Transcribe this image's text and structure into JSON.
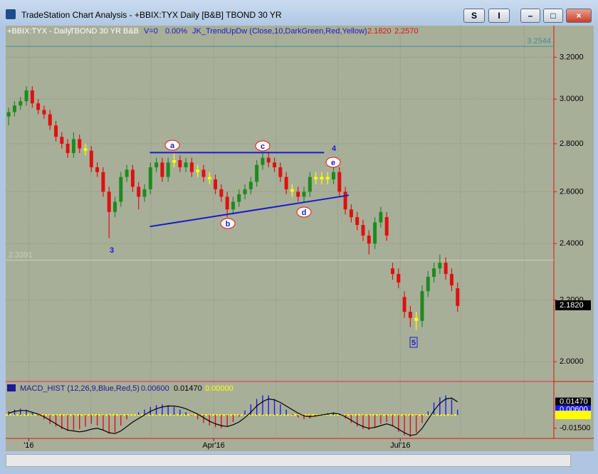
{
  "window": {
    "title": "TradeStation Chart Analysis - +BBIX:TYX Daily [B&B] TBOND 30 YR",
    "buttons": [
      "S",
      "I"
    ]
  },
  "chart_data": [
    {
      "type": "candlestick",
      "header": [
        "+BBIX:TYX - Daily",
        "TBOND 30 YR",
        "B&B",
        "V=0",
        "0.00%",
        "JK_TrendUpDw (Close,10,DarkGreen,Red,Yellow)",
        "2.1820",
        "2.2570"
      ],
      "log_scale": true,
      "grid": true,
      "ylim": [
        1.942,
        3.36
      ],
      "yticks": [
        {
          "value": 2.0,
          "label": "2.0000"
        },
        {
          "value": 2.2,
          "label": "2.2000"
        },
        {
          "value": 2.4,
          "label": "2.4000"
        },
        {
          "value": 2.6,
          "label": "2.6000"
        },
        {
          "value": 2.8,
          "label": "2.8000"
        },
        {
          "value": 3.0,
          "label": "3.0000"
        },
        {
          "value": 3.2,
          "label": "3.2000"
        }
      ],
      "xlim": [
        -0.5,
        92.3
      ],
      "xticks": [
        {
          "value": 3.4,
          "label": "'16"
        },
        {
          "value": 34.7,
          "label": "Apr'16"
        },
        {
          "value": 66.3,
          "label": "Jul'16"
        }
      ],
      "xgrid": [
        3.4,
        13.9,
        24.1,
        34.7,
        45.3,
        55.7,
        66.3,
        76.5,
        87.3
      ],
      "ref_lines": [
        {
          "value": 3.2544,
          "label": "3.2544",
          "color": "#3a8fa0"
        },
        {
          "value": 2.3391,
          "label": "2.3391",
          "color": "#c9cfbd"
        }
      ],
      "last_price": {
        "value": 2.182,
        "label": "2.1820"
      },
      "up_color": "#1f8a1f",
      "down_color": "#e01010",
      "flat_color": "#ffff00",
      "annotations": [
        "a",
        "b",
        "c",
        "d",
        "e",
        "3",
        "4",
        "5"
      ],
      "ohlc": [
        [
          2.92,
          2.96,
          2.88,
          2.94
        ],
        [
          2.94,
          2.99,
          2.92,
          2.97
        ],
        [
          2.97,
          3.01,
          2.95,
          2.99
        ],
        [
          2.99,
          3.06,
          2.97,
          3.04
        ],
        [
          3.04,
          3.06,
          2.96,
          2.98
        ],
        [
          2.98,
          3.0,
          2.93,
          2.95
        ],
        [
          2.95,
          2.97,
          2.91,
          2.93
        ],
        [
          2.93,
          2.95,
          2.86,
          2.88
        ],
        [
          2.88,
          2.9,
          2.81,
          2.83
        ],
        [
          2.83,
          2.85,
          2.78,
          2.8
        ],
        [
          2.8,
          2.82,
          2.74,
          2.76
        ],
        [
          2.76,
          2.85,
          2.74,
          2.82
        ],
        [
          2.82,
          2.84,
          2.76,
          2.78
        ],
        [
          2.78,
          2.8,
          2.75,
          2.77
        ],
        [
          2.77,
          2.79,
          2.68,
          2.7
        ],
        [
          2.7,
          2.72,
          2.66,
          2.68
        ],
        [
          2.68,
          2.7,
          2.58,
          2.6
        ],
        [
          2.6,
          2.62,
          2.42,
          2.52
        ],
        [
          2.52,
          2.58,
          2.5,
          2.56
        ],
        [
          2.56,
          2.68,
          2.54,
          2.66
        ],
        [
          2.66,
          2.71,
          2.64,
          2.69
        ],
        [
          2.69,
          2.71,
          2.6,
          2.62
        ],
        [
          2.62,
          2.64,
          2.53,
          2.58
        ],
        [
          2.58,
          2.63,
          2.56,
          2.61
        ],
        [
          2.61,
          2.72,
          2.59,
          2.7
        ],
        [
          2.7,
          2.74,
          2.68,
          2.72
        ],
        [
          2.72,
          2.74,
          2.64,
          2.66
        ],
        [
          2.66,
          2.74,
          2.64,
          2.72
        ],
        [
          2.72,
          2.76,
          2.7,
          2.73
        ],
        [
          2.73,
          2.75,
          2.68,
          2.7
        ],
        [
          2.7,
          2.74,
          2.68,
          2.72
        ],
        [
          2.72,
          2.74,
          2.66,
          2.68
        ],
        [
          2.68,
          2.71,
          2.66,
          2.69
        ],
        [
          2.69,
          2.71,
          2.64,
          2.66
        ],
        [
          2.66,
          2.68,
          2.63,
          2.65
        ],
        [
          2.65,
          2.67,
          2.59,
          2.61
        ],
        [
          2.61,
          2.63,
          2.56,
          2.58
        ],
        [
          2.58,
          2.6,
          2.5,
          2.53
        ],
        [
          2.53,
          2.58,
          2.51,
          2.56
        ],
        [
          2.56,
          2.61,
          2.54,
          2.59
        ],
        [
          2.59,
          2.63,
          2.57,
          2.61
        ],
        [
          2.61,
          2.66,
          2.59,
          2.64
        ],
        [
          2.64,
          2.73,
          2.62,
          2.71
        ],
        [
          2.71,
          2.76,
          2.69,
          2.74
        ],
        [
          2.74,
          2.76,
          2.7,
          2.72
        ],
        [
          2.72,
          2.74,
          2.68,
          2.7
        ],
        [
          2.7,
          2.72,
          2.64,
          2.66
        ],
        [
          2.66,
          2.68,
          2.59,
          2.61
        ],
        [
          2.61,
          2.63,
          2.58,
          2.6
        ],
        [
          2.6,
          2.62,
          2.56,
          2.58
        ],
        [
          2.58,
          2.62,
          2.56,
          2.6
        ],
        [
          2.6,
          2.68,
          2.58,
          2.66
        ],
        [
          2.66,
          2.68,
          2.63,
          2.65
        ],
        [
          2.65,
          2.68,
          2.63,
          2.66
        ],
        [
          2.66,
          2.68,
          2.63,
          2.65
        ],
        [
          2.65,
          2.71,
          2.63,
          2.68
        ],
        [
          2.68,
          2.7,
          2.58,
          2.6
        ],
        [
          2.6,
          2.62,
          2.51,
          2.53
        ],
        [
          2.53,
          2.55,
          2.48,
          2.5
        ],
        [
          2.5,
          2.52,
          2.45,
          2.47
        ],
        [
          2.47,
          2.49,
          2.41,
          2.43
        ],
        [
          2.43,
          2.45,
          2.36,
          2.4
        ],
        [
          2.4,
          2.5,
          2.38,
          2.48
        ],
        [
          2.48,
          2.54,
          2.46,
          2.52
        ],
        [
          2.5,
          2.52,
          2.41,
          2.43
        ],
        [
          2.31,
          2.33,
          2.27,
          2.29
        ],
        [
          2.29,
          2.31,
          2.24,
          2.26
        ],
        [
          2.21,
          2.23,
          2.14,
          2.16
        ],
        [
          2.16,
          2.18,
          2.11,
          2.14
        ],
        [
          2.14,
          2.16,
          2.1,
          2.13
        ],
        [
          2.13,
          2.25,
          2.11,
          2.23
        ],
        [
          2.23,
          2.3,
          2.21,
          2.28
        ],
        [
          2.28,
          2.33,
          2.26,
          2.31
        ],
        [
          2.31,
          2.36,
          2.29,
          2.33
        ],
        [
          2.33,
          2.35,
          2.27,
          2.29
        ],
        [
          2.29,
          2.31,
          2.23,
          2.25
        ],
        [
          2.24,
          2.26,
          2.16,
          2.18
        ]
      ]
    },
    {
      "type": "macd",
      "header": [
        "MACD_HIST (12,26,9,Blue,Red,5)",
        "0.00600",
        "0.01470",
        "0.00000"
      ],
      "ylim": [
        -0.0264,
        0.0368
      ],
      "yticks": [
        {
          "value": 0.0147,
          "label": "0.01470"
        },
        {
          "value": 0.006,
          "label": "0.00600"
        },
        {
          "value": 0,
          "label": "0.00000"
        },
        {
          "value": -0.015,
          "label": "-0.01500"
        }
      ],
      "xlim": [
        -0.5,
        92.3
      ],
      "series": [
        {
          "name": "MACD_HIST",
          "color": "#1a1aff",
          "neg_color": "#e01010",
          "values": [
            0.004,
            0.006,
            0.007,
            0.006,
            0.003,
            -0.001,
            -0.005,
            -0.01,
            -0.013,
            -0.016,
            -0.018,
            -0.017,
            -0.016,
            -0.013,
            -0.01,
            -0.012,
            -0.017,
            -0.021,
            -0.02,
            -0.012,
            -0.005,
            0,
            0.003,
            0.006,
            0.009,
            0.011,
            0.012,
            0.011,
            0.009,
            0.006,
            0.003,
            -0.001,
            -0.005,
            -0.009,
            -0.012,
            -0.014,
            -0.015,
            -0.013,
            -0.008,
            -0.002,
            0.005,
            0.012,
            0.018,
            0.022,
            0.022,
            0.018,
            0.012,
            0.006,
            0.001,
            -0.003,
            -0.005,
            -0.004,
            -0.002,
            0,
            0.002,
            0.003,
            0.001,
            -0.004,
            -0.009,
            -0.013,
            -0.016,
            -0.017,
            -0.014,
            -0.01,
            -0.008,
            -0.013,
            -0.019,
            -0.023,
            -0.025,
            -0.02,
            -0.009,
            0.004,
            0.014,
            0.02,
            0.022,
            0.018,
            0.006
          ]
        },
        {
          "name": "MACD",
          "color": "#000000",
          "values": [
            0.002,
            0.004,
            0.005,
            0.005,
            0.003,
            0.001,
            -0.002,
            -0.006,
            -0.01,
            -0.014,
            -0.017,
            -0.018,
            -0.019,
            -0.018,
            -0.016,
            -0.015,
            -0.017,
            -0.02,
            -0.021,
            -0.018,
            -0.013,
            -0.008,
            -0.004,
            0,
            0.004,
            0.007,
            0.009,
            0.01,
            0.01,
            0.009,
            0.007,
            0.004,
            0.001,
            -0.003,
            -0.007,
            -0.01,
            -0.012,
            -0.013,
            -0.011,
            -0.008,
            -0.003,
            0.003,
            0.01,
            0.015,
            0.018,
            0.017,
            0.014,
            0.01,
            0.006,
            0.002,
            -0.001,
            -0.002,
            -0.001,
            0,
            0.001,
            0.002,
            0.001,
            -0.002,
            -0.006,
            -0.01,
            -0.013,
            -0.015,
            -0.014,
            -0.012,
            -0.01,
            -0.012,
            -0.016,
            -0.02,
            -0.023,
            -0.022,
            -0.015,
            -0.005,
            0.005,
            0.013,
            0.018,
            0.019,
            0.0147
          ]
        },
        {
          "name": "Zero",
          "color": "#ffff00",
          "values": [
            0
          ]
        }
      ]
    }
  ]
}
